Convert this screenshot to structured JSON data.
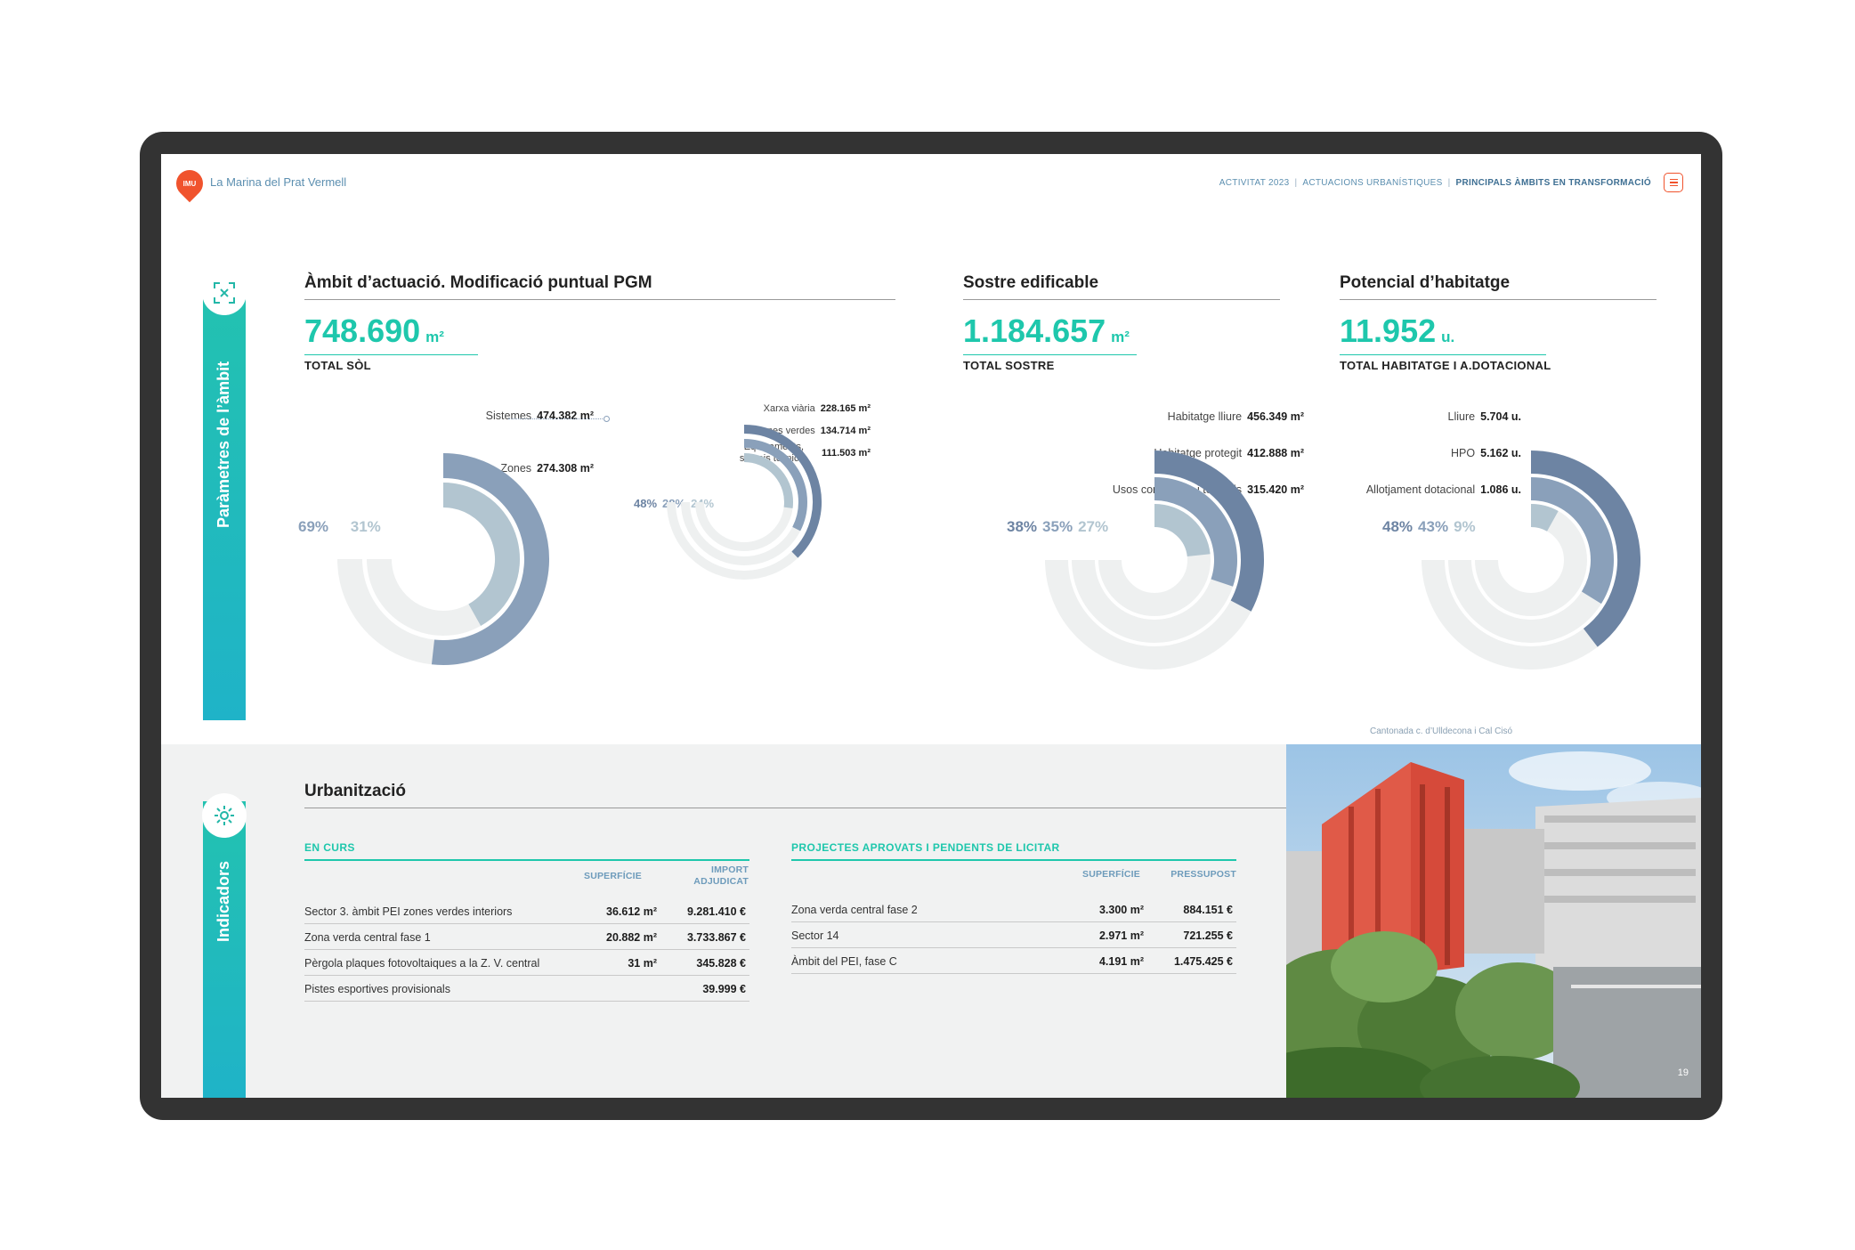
{
  "header": {
    "logo_text": "IMU",
    "title": "La Marina del Prat Vermell",
    "crumbs": [
      "ACTIVITAT 2023",
      "ACTUACIONS URBANÍSTIQUES",
      "PRINCIPALS ÀMBITS EN TRANSFORMACIÓ"
    ]
  },
  "sidebar": {
    "params_label": "Paràmetres de l’àmbit",
    "indicators_label": "Indicadors"
  },
  "colors": {
    "accent": "#1ec7ac",
    "brand": "#f0532d",
    "dark_blue": "#6d84a3",
    "mid_blue": "#8aa0ba",
    "light_blue": "#b2c5d0",
    "track": "#eef0f0"
  },
  "ambit": {
    "title": "Àmbit d’actuació. Modificació puntual PGM",
    "total_value": "748.690",
    "total_unit": "m²",
    "total_label": "TOTAL SÒL",
    "rows": [
      {
        "label": "Sistemes",
        "value": "474.382 m²"
      },
      {
        "label": "Zones",
        "value": "274.308 m²"
      }
    ],
    "pcts": [
      "69%",
      "31%"
    ],
    "sub_rows": [
      {
        "label": "Xarxa viària",
        "value": "228.165 m²"
      },
      {
        "label": "Zones verdes",
        "value": "134.714 m²"
      },
      {
        "label": "Equipaments,",
        "label2": "serveis tècnics",
        "value": "111.503 m²"
      }
    ],
    "sub_pcts": [
      "48%",
      "28%",
      "24%"
    ]
  },
  "sostre": {
    "title": "Sostre edificable",
    "total_value": "1.184.657",
    "total_unit": "m²",
    "total_label": "TOTAL SOSTRE",
    "rows": [
      {
        "label": "Habitatge lliure",
        "value": "456.349 m²"
      },
      {
        "label": "Habitatge protegit",
        "value": "412.888 m²"
      },
      {
        "label": "Usos comercials i terciaris",
        "value": "315.420 m²"
      }
    ],
    "pcts": [
      "38%",
      "35%",
      "27%"
    ]
  },
  "habitatge": {
    "title": "Potencial d’habitatge",
    "total_value": "11.952",
    "total_unit": "u.",
    "total_label": "TOTAL HABITATGE I A.DOTACIONAL",
    "rows": [
      {
        "label": "Lliure",
        "value": "5.704 u."
      },
      {
        "label": "HPO",
        "value": "5.162 u."
      },
      {
        "label": "Allotjament dotacional",
        "value": "1.086 u."
      }
    ],
    "pcts": [
      "48%",
      "43%",
      "9%"
    ]
  },
  "chart_data": [
    {
      "type": "pie",
      "title": "Àmbit d’actuació. Modificació puntual PGM",
      "categories": [
        "Sistemes",
        "Zones"
      ],
      "values": [
        474382,
        274308
      ],
      "percent": [
        69,
        31
      ]
    },
    {
      "type": "pie",
      "categories": [
        "Xarxa viària",
        "Zones verdes",
        "Equipaments, serveis tècnics"
      ],
      "values": [
        228165,
        134714,
        111503
      ],
      "percent": [
        48,
        28,
        24
      ]
    },
    {
      "type": "pie",
      "title": "Sostre edificable",
      "categories": [
        "Habitatge lliure",
        "Habitatge protegit",
        "Usos comercials i terciaris"
      ],
      "values": [
        456349,
        412888,
        315420
      ],
      "percent": [
        38,
        35,
        27
      ]
    },
    {
      "type": "pie",
      "title": "Potencial d’habitatge",
      "categories": [
        "Lliure",
        "HPO",
        "Allotjament dotacional"
      ],
      "values": [
        5704,
        5162,
        1086
      ],
      "percent": [
        48,
        43,
        9
      ]
    }
  ],
  "urbanitzacio": {
    "title": "Urbanització",
    "en_curs": {
      "title": "EN CURS",
      "col1": "SUPERFÍCIE",
      "col2_l1": "IMPORT",
      "col2_l2": "ADJUDICAT",
      "rows": [
        {
          "name": "Sector 3. àmbit PEI zones verdes interiors",
          "area": "36.612 m²",
          "amount": "9.281.410 €"
        },
        {
          "name": "Zona verda central fase 1",
          "area": "20.882 m²",
          "amount": "3.733.867 €"
        },
        {
          "name": "Pèrgola plaques fotovoltaiques a la Z. V. central",
          "area": "31 m²",
          "amount": "345.828 €"
        },
        {
          "name": "Pistes esportives provisionals",
          "area": "",
          "amount": "39.999 €"
        }
      ]
    },
    "aprovats": {
      "title": "PROJECTES APROVATS I PENDENTS DE LICITAR",
      "col1": "SUPERFÍCIE",
      "col2": "PRESSUPOST",
      "rows": [
        {
          "name": "Zona verda central fase 2",
          "area": "3.300 m²",
          "amount": "884.151 €"
        },
        {
          "name": "Sector 14",
          "area": "2.971 m²",
          "amount": "721.255 €"
        },
        {
          "name": "Àmbit del PEI, fase C",
          "area": "4.191 m²",
          "amount": "1.475.425 €"
        }
      ]
    }
  },
  "photo": {
    "caption": "Cantonada c. d’Ulldecona i Cal Cisó",
    "page_number": "19"
  }
}
